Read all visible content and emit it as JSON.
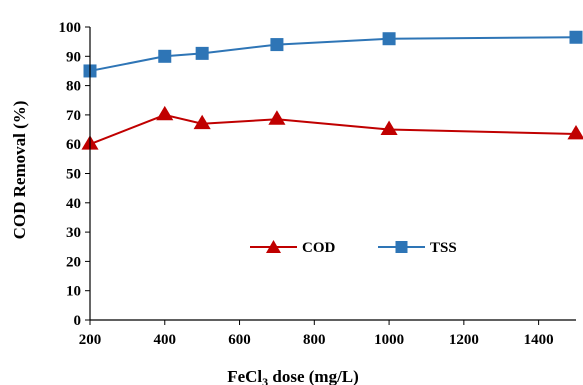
{
  "chart_data": {
    "type": "line",
    "title": "",
    "xlabel": "FeCl",
    "xlabel_sub": "3",
    "xlabel_suffix": " dose (mg/L)",
    "ylabel": "COD Removal (%)",
    "xlim": [
      200,
      1500
    ],
    "ylim": [
      0,
      100
    ],
    "xticks": [
      200,
      400,
      600,
      800,
      1000,
      1200,
      1400
    ],
    "yticks": [
      0,
      10,
      20,
      30,
      40,
      50,
      60,
      70,
      80,
      90,
      100
    ],
    "grid": false,
    "legend_position": "center",
    "series": [
      {
        "name": "COD",
        "color": "#c00000",
        "marker": "triangle",
        "x": [
          200,
          400,
          500,
          700,
          1000,
          1500
        ],
        "y": [
          60,
          70,
          67,
          68.5,
          65,
          63.5
        ]
      },
      {
        "name": "TSS",
        "color": "#2e75b6",
        "marker": "square",
        "x": [
          200,
          400,
          500,
          700,
          1000,
          1500
        ],
        "y": [
          85,
          90,
          91,
          94,
          96,
          96.5
        ]
      }
    ]
  }
}
